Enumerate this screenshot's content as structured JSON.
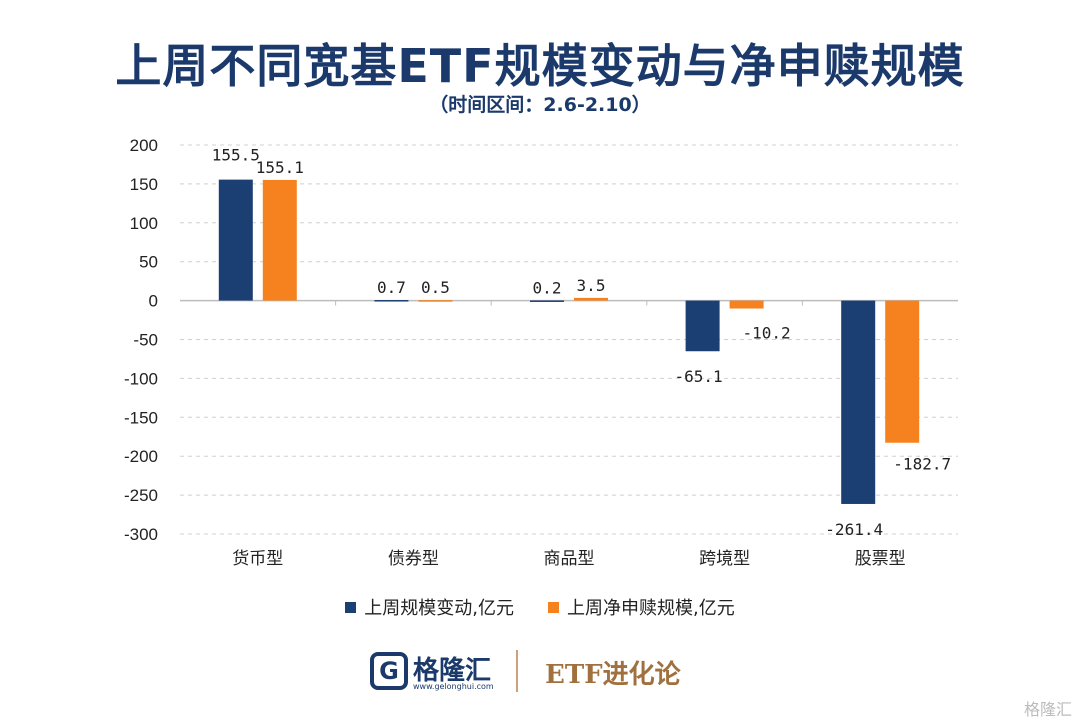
{
  "header": {
    "title": "上周不同宽基ETF规模变动与净申赎规模",
    "subtitle": "（时间区间：2.6-2.10）"
  },
  "chart_data": {
    "type": "bar",
    "categories": [
      "货币型",
      "债券型",
      "商品型",
      "跨境型",
      "股票型"
    ],
    "series": [
      {
        "name": "上周规模变动,亿元",
        "values": [
          155.5,
          0.7,
          0.2,
          -65.1,
          -261.4
        ],
        "labels": [
          "155.5",
          "0.7",
          "0.2",
          "-65.1",
          "-261.4"
        ],
        "color": "#1b3f73"
      },
      {
        "name": "上周净申赎规模,亿元",
        "values": [
          155.1,
          0.5,
          3.5,
          -10.2,
          -182.7
        ],
        "labels": [
          "155.1",
          "0.5",
          "3.5",
          "-10.2",
          "-182.7"
        ],
        "color": "#f5821f"
      }
    ],
    "ylim": [
      -300,
      200
    ],
    "yticks": [
      200,
      150,
      100,
      50,
      0,
      -50,
      -100,
      -150,
      -200,
      -250,
      -300
    ],
    "ytick_labels": [
      "200",
      "150",
      "100",
      "50",
      "0",
      "-50",
      "-100",
      "-150",
      "-200",
      "-250",
      "-300"
    ],
    "grid": true,
    "legend_position": "bottom"
  },
  "footer": {
    "logo_letter": "G",
    "logo_name": "格隆汇",
    "logo_url": "www.gelonghui.com",
    "brand": "ETF进化论",
    "watermark": "格隆汇"
  }
}
